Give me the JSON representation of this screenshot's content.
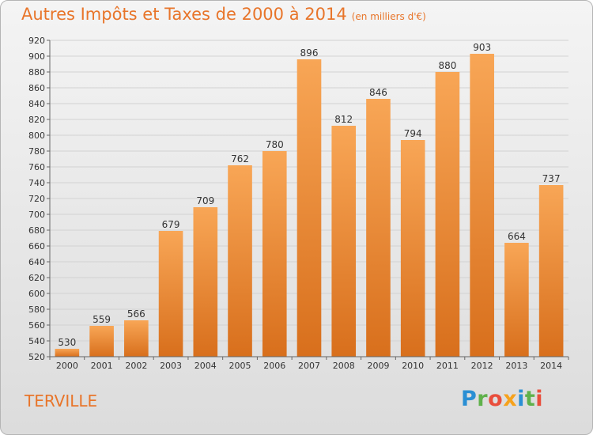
{
  "header": {
    "title": "Autres Impôts et Taxes de 2000 à 2014",
    "subtitle": "(en milliers d'€)"
  },
  "footer": {
    "city": "TERVILLE",
    "logo_letters": [
      "P",
      "r",
      "o",
      "x",
      "i",
      "t",
      "i"
    ],
    "logo_colors": [
      "#2a8fd4",
      "#5fb14b",
      "#e94e3c",
      "#f6a21c",
      "#2a8fd4",
      "#5fb14b",
      "#e94e3c"
    ]
  },
  "colors": {
    "bar_light": "#f8a656",
    "bar_dark": "#d86f1c",
    "accent": "#e8752a",
    "grid": "#d2d2d2"
  },
  "chart_data": {
    "type": "bar",
    "categories": [
      "2000",
      "2001",
      "2002",
      "2003",
      "2004",
      "2005",
      "2006",
      "2007",
      "2008",
      "2009",
      "2010",
      "2011",
      "2012",
      "2013",
      "2014"
    ],
    "values": [
      530,
      559,
      566,
      679,
      709,
      762,
      780,
      896,
      812,
      846,
      794,
      880,
      903,
      664,
      737
    ],
    "title": "Autres Impôts et Taxes de 2000 à 2014",
    "subtitle": "(en milliers d'€)",
    "ylim": [
      520,
      920
    ],
    "yticks": [
      520,
      540,
      560,
      580,
      600,
      620,
      640,
      660,
      680,
      700,
      720,
      740,
      760,
      780,
      800,
      820,
      840,
      860,
      880,
      900,
      920
    ],
    "grid": true
  }
}
